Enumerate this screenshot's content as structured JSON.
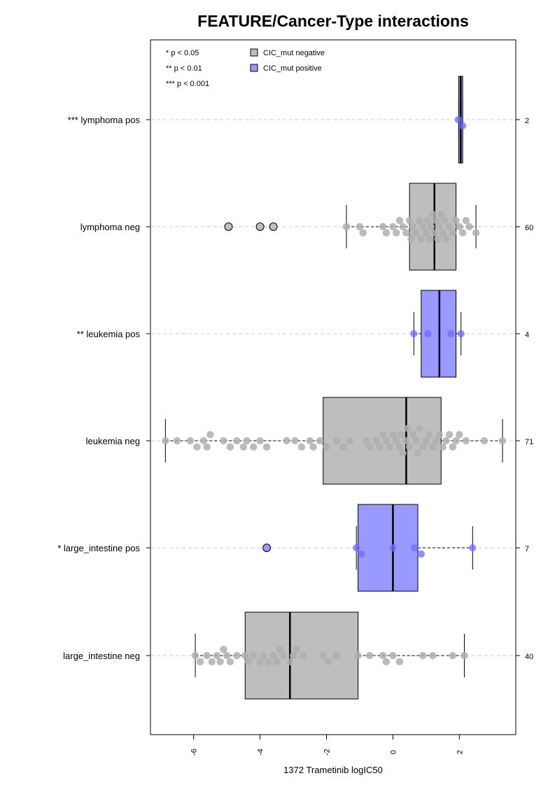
{
  "chart_data": {
    "type": "boxplot",
    "orientation": "horizontal",
    "title": "FEATURE/Cancer-Type interactions",
    "xlabel": "1372 Trametinib logIC50",
    "xlim": [
      -7.3,
      3.7
    ],
    "xticks": [
      -6,
      -4,
      -2,
      0,
      2
    ],
    "grid": "horizontal dashed lines at each group",
    "significance_legend": [
      "* p < 0.05",
      "** p < 0.01",
      "*** p < 0.001"
    ],
    "legend": [
      {
        "label": "CIC_mut negative",
        "color": "#bebebe"
      },
      {
        "label": "CIC_mut positive",
        "color": "#9999ff"
      }
    ],
    "legend_position": "top-left",
    "groups": [
      {
        "label": "*** lymphoma pos",
        "n": "2",
        "type": "pos",
        "q1": 1.98,
        "median": 2.04,
        "q3": 2.1,
        "whisker_low": 1.98,
        "whisker_high": 2.1,
        "outliers": [],
        "points": [
          1.97,
          2.1
        ]
      },
      {
        "label": "lymphoma neg",
        "n": "60",
        "type": "neg",
        "q1": 0.5,
        "median": 1.25,
        "q3": 1.9,
        "whisker_low": -1.4,
        "whisker_high": 2.5,
        "outliers": [
          -4.95,
          -4.0,
          -3.6
        ],
        "points": [
          -1.4,
          -1.0,
          -0.9,
          -0.3,
          -0.2,
          0.0,
          0.1,
          0.2,
          0.3,
          0.4,
          0.5,
          0.55,
          0.6,
          0.7,
          0.8,
          0.85,
          0.9,
          1.0,
          1.05,
          1.1,
          1.15,
          1.2,
          1.25,
          1.3,
          1.35,
          1.4,
          1.45,
          1.5,
          1.55,
          1.6,
          1.7,
          1.8,
          1.9,
          2.0,
          2.1,
          2.2,
          2.3,
          2.5
        ]
      },
      {
        "label": "** leukemia pos",
        "n": "4",
        "type": "pos",
        "q1": 0.85,
        "median": 1.4,
        "q3": 1.9,
        "whisker_low": 0.63,
        "whisker_high": 2.05,
        "outliers": [],
        "points": [
          0.63,
          1.05,
          1.75,
          2.05
        ]
      },
      {
        "label": "leukemia neg",
        "n": "71",
        "type": "neg",
        "q1": -2.1,
        "median": 0.4,
        "q3": 1.45,
        "whisker_low": -6.85,
        "whisker_high": 3.3,
        "outliers": [],
        "points": [
          -6.85,
          -6.5,
          -6.1,
          -5.9,
          -5.7,
          -5.6,
          -5.5,
          -5.1,
          -4.9,
          -4.7,
          -4.5,
          -4.4,
          -4.2,
          -4.0,
          -3.8,
          -3.2,
          -2.95,
          -2.75,
          -2.5,
          -2.4,
          -2.2,
          -2.0,
          -1.7,
          -1.5,
          -1.3,
          -0.8,
          -0.7,
          -0.5,
          -0.4,
          -0.3,
          -0.2,
          -0.1,
          0.0,
          0.1,
          0.2,
          0.25,
          0.3,
          0.4,
          0.45,
          0.5,
          0.6,
          0.7,
          0.75,
          0.8,
          0.9,
          1.0,
          1.1,
          1.2,
          1.3,
          1.4,
          1.5,
          1.6,
          1.7,
          1.8,
          1.9,
          2.0,
          2.2,
          2.75,
          3.3
        ]
      },
      {
        "label": "* large_intestine pos",
        "n": "7",
        "type": "pos",
        "q1": -1.05,
        "median": 0.0,
        "q3": 0.75,
        "whisker_low": -1.1,
        "whisker_high": 2.4,
        "outliers": [
          -3.8
        ],
        "points": [
          -1.1,
          -0.95,
          0.0,
          0.65,
          0.85,
          2.4
        ]
      },
      {
        "label": "large_intestine neg",
        "n": "40",
        "type": "neg",
        "q1": -4.45,
        "median": -3.1,
        "q3": -1.05,
        "whisker_low": -5.95,
        "whisker_high": 2.15,
        "outliers": [],
        "points": [
          -5.95,
          -5.8,
          -5.6,
          -5.45,
          -5.3,
          -5.2,
          -5.1,
          -5.0,
          -4.9,
          -4.7,
          -4.45,
          -4.35,
          -4.2,
          -4.0,
          -3.9,
          -3.75,
          -3.6,
          -3.5,
          -3.4,
          -3.3,
          -3.1,
          -3.0,
          -2.9,
          -2.7,
          -2.1,
          -1.95,
          -1.7,
          -1.05,
          -0.7,
          -0.3,
          -0.2,
          0.0,
          0.2,
          0.9,
          1.2,
          1.8,
          2.15
        ]
      }
    ]
  }
}
